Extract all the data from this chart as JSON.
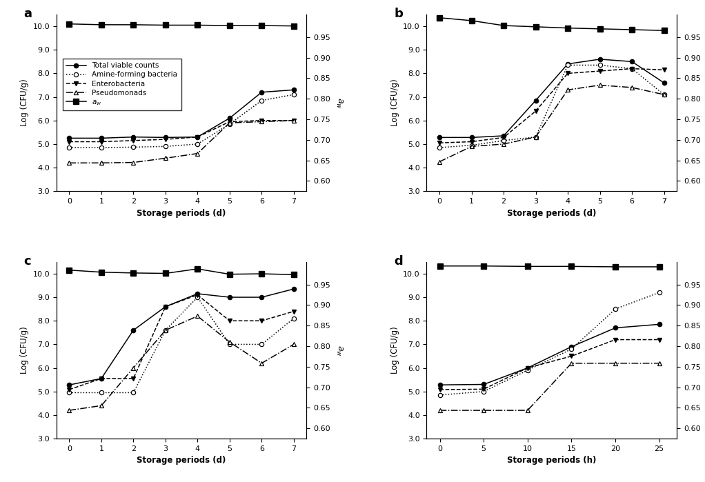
{
  "panel_a": {
    "label": "a",
    "x": [
      0,
      1,
      2,
      3,
      4,
      5,
      6,
      7
    ],
    "xlabel": "Storage periods (d)",
    "total_viable": [
      5.25,
      5.25,
      5.3,
      5.28,
      5.3,
      6.1,
      7.2,
      7.3
    ],
    "amine": [
      4.85,
      4.85,
      4.87,
      4.9,
      5.0,
      5.85,
      6.85,
      7.1
    ],
    "entero": [
      5.1,
      5.1,
      5.15,
      5.2,
      5.3,
      5.95,
      6.0,
      6.0
    ],
    "pseudo": [
      4.2,
      4.2,
      4.22,
      4.4,
      4.6,
      5.9,
      5.95,
      6.0
    ],
    "aw": [
      0.982,
      0.98,
      0.98,
      0.979,
      0.979,
      0.978,
      0.978,
      0.977
    ]
  },
  "panel_b": {
    "label": "b",
    "x": [
      0,
      1,
      2,
      3,
      4,
      5,
      6,
      7
    ],
    "xlabel": "Storage periods (d)",
    "total_viable": [
      5.28,
      5.28,
      5.35,
      6.85,
      8.4,
      8.6,
      8.5,
      7.6
    ],
    "amine": [
      4.85,
      4.95,
      5.15,
      5.3,
      8.35,
      8.35,
      8.2,
      7.1
    ],
    "entero": [
      5.05,
      5.1,
      5.28,
      6.4,
      8.0,
      8.1,
      8.2,
      8.15
    ],
    "pseudo": [
      4.25,
      4.9,
      5.0,
      5.3,
      7.3,
      7.5,
      7.4,
      7.1
    ],
    "aw": [
      0.997,
      0.99,
      0.978,
      0.975,
      0.972,
      0.97,
      0.968,
      0.966
    ]
  },
  "panel_c": {
    "label": "c",
    "x": [
      0,
      1,
      2,
      3,
      4,
      5,
      6,
      7
    ],
    "xlabel": "Storage periods (d)",
    "total_viable": [
      5.28,
      5.55,
      7.6,
      8.6,
      9.15,
      9.0,
      9.0,
      9.35
    ],
    "amine": [
      4.95,
      4.95,
      4.95,
      7.6,
      9.0,
      7.0,
      7.0,
      8.1
    ],
    "entero": [
      5.08,
      5.55,
      5.55,
      8.6,
      9.1,
      8.0,
      8.0,
      8.4
    ],
    "pseudo": [
      4.2,
      4.4,
      6.0,
      7.6,
      8.2,
      7.1,
      6.2,
      7.0
    ],
    "aw": [
      0.985,
      0.98,
      0.978,
      0.977,
      0.988,
      0.975,
      0.976,
      0.974
    ]
  },
  "panel_d": {
    "label": "d",
    "x": [
      0,
      5,
      10,
      15,
      20,
      25
    ],
    "xlabel": "Storage periods (h)",
    "total_viable": [
      5.28,
      5.3,
      6.0,
      6.9,
      7.7,
      7.85
    ],
    "amine": [
      4.85,
      5.0,
      5.9,
      6.8,
      8.5,
      9.2
    ],
    "entero": [
      5.08,
      5.1,
      6.0,
      6.5,
      7.2,
      7.2
    ],
    "pseudo": [
      4.2,
      4.2,
      4.2,
      6.2,
      6.2,
      6.2
    ],
    "aw": [
      0.995,
      0.995,
      0.994,
      0.994,
      0.993,
      0.993
    ]
  },
  "ylim_left": [
    3.0,
    10.5
  ],
  "yticks_left": [
    3.0,
    4.0,
    5.0,
    6.0,
    7.0,
    8.0,
    9.0,
    10.0
  ],
  "ylim_right": [
    0.575,
    1.005
  ],
  "yticks_right": [
    0.6,
    0.65,
    0.7,
    0.75,
    0.8,
    0.85,
    0.9,
    0.95
  ],
  "ylabel_left": "Log (CFU/g)",
  "ylabel_right": "$a_w$",
  "legend_labels": [
    "Total viable counts",
    "Amine-forming bacteria",
    "Enterobacteria",
    "Pseudomonads",
    "$a_w$"
  ]
}
